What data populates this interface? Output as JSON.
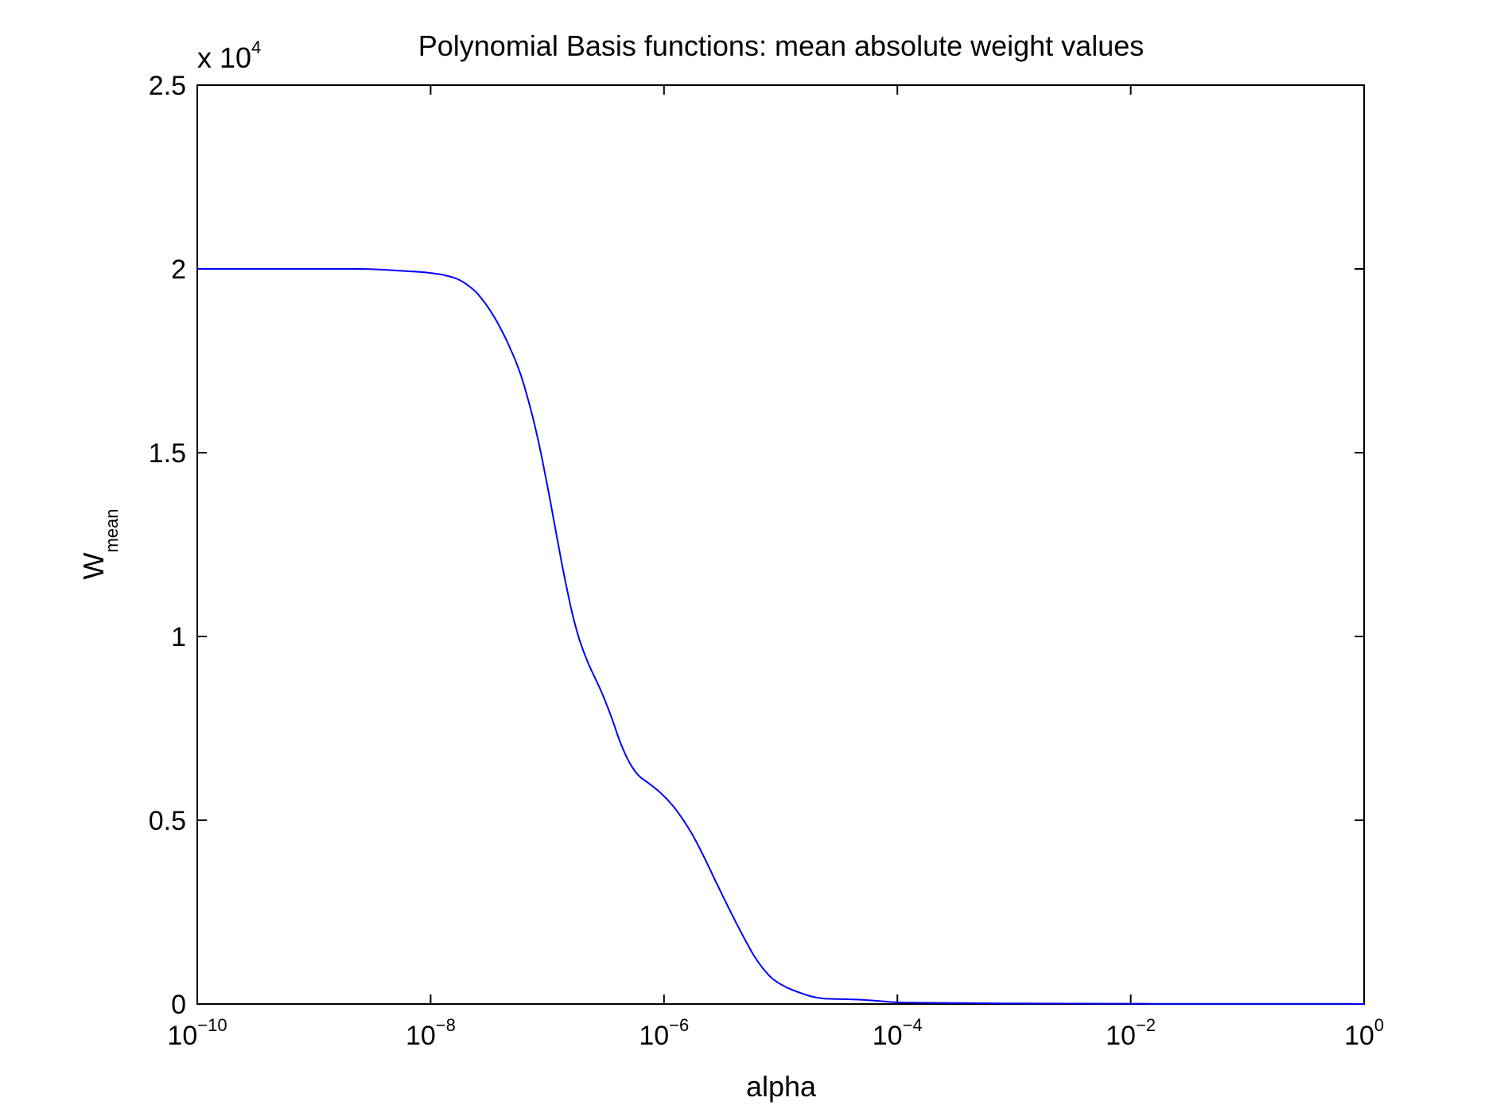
{
  "chart_data": {
    "type": "line",
    "title": "Polynomial Basis functions: mean absolute weight values",
    "xlabel": "alpha",
    "ylabel": {
      "main": "W",
      "subscript": "mean"
    },
    "xscale": "log",
    "xlim": [
      1e-10,
      1
    ],
    "ylim": [
      0,
      25000
    ],
    "y_multiplier": {
      "prefix": "x 10",
      "exponent": "4"
    },
    "grid": false,
    "legend": "none",
    "line_color": "#0000ff",
    "x_ticks": [
      {
        "base": "10",
        "exp": "−10",
        "value": 1e-10
      },
      {
        "base": "10",
        "exp": "−8",
        "value": 1e-08
      },
      {
        "base": "10",
        "exp": "−6",
        "value": 1e-06
      },
      {
        "base": "10",
        "exp": "−4",
        "value": 0.0001
      },
      {
        "base": "10",
        "exp": "−2",
        "value": 0.01
      },
      {
        "base": "10",
        "exp": "0",
        "value": 1
      }
    ],
    "y_ticks": [
      {
        "label": "0",
        "value": 0
      },
      {
        "label": "0.5",
        "value": 5000
      },
      {
        "label": "1",
        "value": 10000
      },
      {
        "label": "1.5",
        "value": 15000
      },
      {
        "label": "2",
        "value": 20000
      },
      {
        "label": "2.5",
        "value": 25000
      }
    ],
    "series": [
      {
        "x": [
          1e-10,
          1e-09,
          3e-09,
          1e-08,
          1.5e-08,
          2e-08,
          3e-08,
          5e-08,
          7e-08,
          1e-07,
          1.5e-07,
          2e-07,
          3e-07,
          5e-07,
          1e-06,
          1.5e-06,
          2e-06,
          3e-06,
          5e-06,
          7e-06,
          1e-05,
          2e-05,
          5e-05,
          0.0001,
          0.001,
          0.01,
          0.1,
          1
        ],
        "y": [
          20000,
          20000,
          20000,
          19900,
          19800,
          19650,
          19100,
          17800,
          16500,
          14200,
          11000,
          9500,
          8500,
          6400,
          5700,
          5000,
          4300,
          3100,
          1700,
          900,
          500,
          150,
          120,
          40,
          15,
          8,
          5,
          3
        ]
      }
    ]
  }
}
